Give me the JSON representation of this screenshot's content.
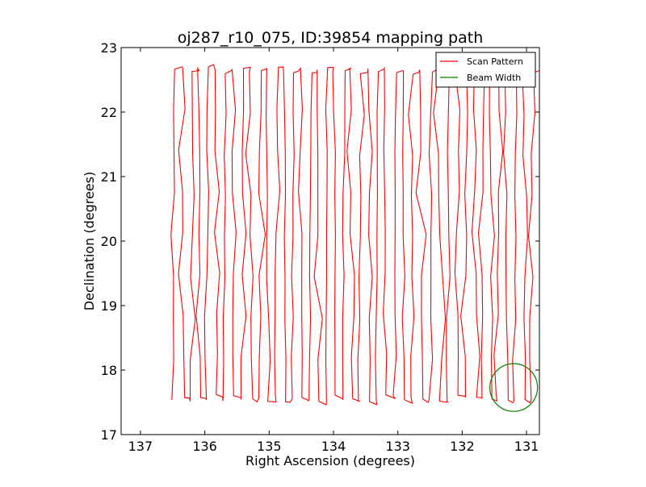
{
  "chart_data": {
    "type": "line",
    "title": "oj287_r10_075, ID:39854 mapping path",
    "xlabel": "Right Ascension (degrees)",
    "ylabel": "Declination (degrees)",
    "xlim": [
      137.3,
      130.8
    ],
    "ylim": [
      17,
      23
    ],
    "x_inverted": true,
    "xticks": [
      137,
      136,
      135,
      134,
      133,
      132,
      131
    ],
    "yticks": [
      17,
      18,
      19,
      20,
      21,
      22,
      23
    ],
    "xtick_labels": [
      "137",
      "136",
      "135",
      "134",
      "133",
      "132",
      "131"
    ],
    "ytick_labels": [
      "17",
      "18",
      "19",
      "20",
      "21",
      "22",
      "23"
    ],
    "grid": false,
    "legend": {
      "position": "top-right",
      "entries": [
        {
          "label": "Scan Pattern",
          "color": "#ff0000"
        },
        {
          "label": "Beam Width",
          "color": "#008000"
        }
      ]
    },
    "series": [
      {
        "name": "Scan Pattern",
        "color": "#ff0000",
        "style": "raster scan: vertical sweeps in declination stepping westward in right ascension",
        "ra_start": 136.5,
        "ra_end": 130.9,
        "ra_step": 0.128,
        "dec_min": 17.35,
        "dec_max": 22.85
      },
      {
        "name": "Beam Width",
        "color": "#008000",
        "shape": "circle",
        "center": [
          131.2,
          17.73
        ],
        "radius_deg": 0.37
      }
    ]
  }
}
